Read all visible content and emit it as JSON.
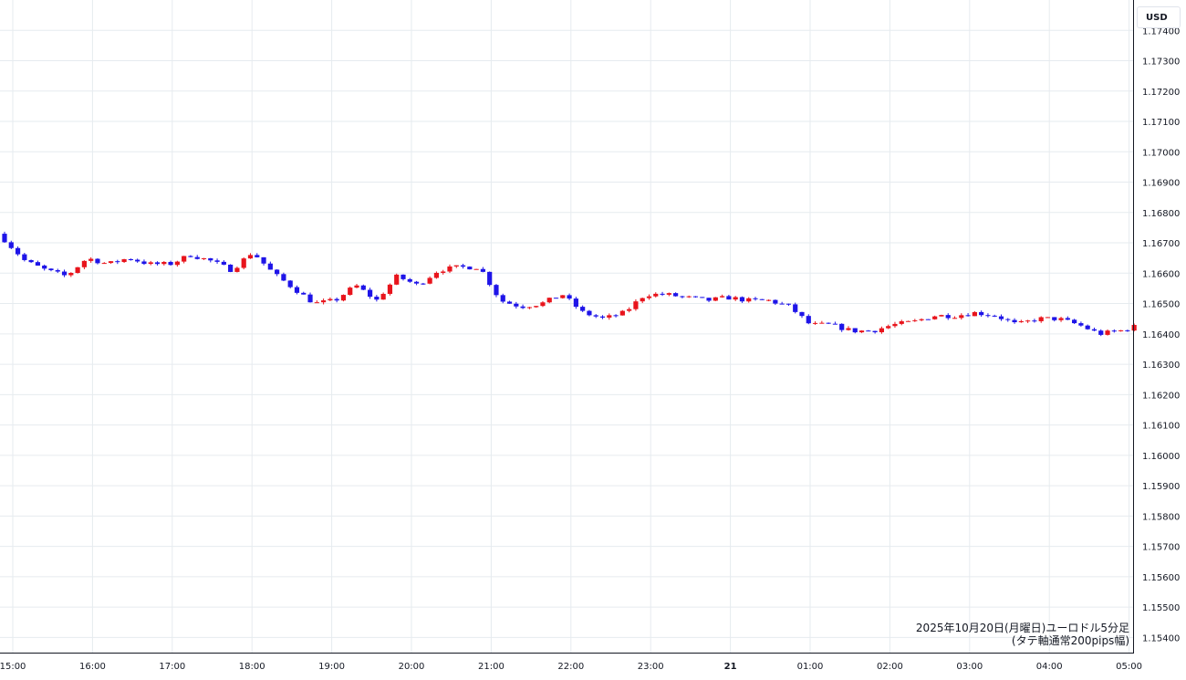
{
  "chart_data": {
    "type": "candlestick",
    "interval": "5分足",
    "currency": "USD",
    "ylim": [
      1.1535,
      1.175
    ],
    "y_ticks": [
      "1.17400",
      "1.17300",
      "1.17200",
      "1.17100",
      "1.17000",
      "1.16900",
      "1.16800",
      "1.16700",
      "1.16600",
      "1.16500",
      "1.16400",
      "1.16300",
      "1.16200",
      "1.16100",
      "1.16000",
      "1.15900",
      "1.15800",
      "1.15700",
      "1.15600",
      "1.15500",
      "1.15400"
    ],
    "x_ticks": [
      {
        "label": "15:00",
        "bold": false
      },
      {
        "label": "16:00",
        "bold": false
      },
      {
        "label": "17:00",
        "bold": false
      },
      {
        "label": "18:00",
        "bold": false
      },
      {
        "label": "19:00",
        "bold": false
      },
      {
        "label": "20:00",
        "bold": false
      },
      {
        "label": "21:00",
        "bold": false
      },
      {
        "label": "22:00",
        "bold": false
      },
      {
        "label": "23:00",
        "bold": false
      },
      {
        "label": "21",
        "bold": true
      },
      {
        "label": "01:00",
        "bold": false
      },
      {
        "label": "02:00",
        "bold": false
      },
      {
        "label": "03:00",
        "bold": false
      },
      {
        "label": "04:00",
        "bold": false
      },
      {
        "label": "05:00",
        "bold": false
      }
    ],
    "bull_color": "#e8141c",
    "bear_color": "#1e14e8",
    "caption_line1": "2025年10月20日(月曜日)ユーロドル5分足",
    "caption_line2": "(タテ軸通常200pips幅)",
    "anchor_closes": [
      1.1671,
      1.1664,
      1.1661,
      1.1659,
      1.1665,
      1.1663,
      1.1665,
      1.1663,
      1.1663,
      1.1666,
      1.1664,
      1.1661,
      1.1667,
      1.166,
      1.1655,
      1.165,
      1.1651,
      1.1656,
      1.1651,
      1.1659,
      1.1656,
      1.1661,
      1.1662,
      1.1662,
      1.1651,
      1.1649,
      1.165,
      1.1653,
      1.1647,
      1.1645,
      1.1647,
      1.1653,
      1.1653,
      1.1652,
      1.1651,
      1.1652,
      1.1651,
      1.1651,
      1.1649,
      1.1643,
      1.1643,
      1.1641,
      1.1641,
      1.1643,
      1.1644,
      1.1646,
      1.1646,
      1.1647,
      1.1646,
      1.1643,
      1.1645,
      1.1645,
      1.1643,
      1.164,
      1.1641,
      1.1643
    ]
  }
}
